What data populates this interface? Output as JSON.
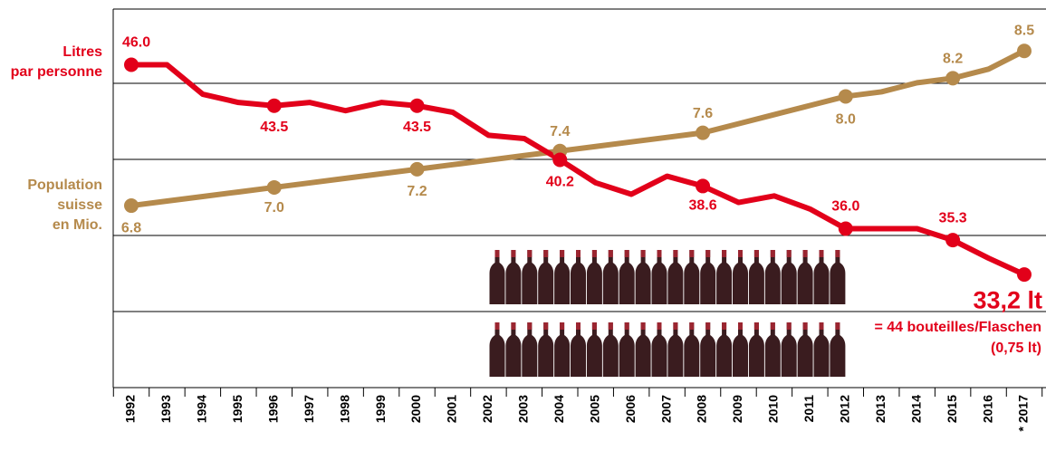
{
  "chart_data": {
    "type": "line",
    "categories": [
      "1992",
      "1993",
      "1994",
      "1995",
      "1996",
      "1997",
      "1998",
      "1999",
      "2000",
      "2001",
      "2002",
      "2003",
      "2004",
      "2005",
      "2006",
      "2007",
      "2008",
      "2009",
      "2010",
      "2011",
      "2012",
      "2013",
      "2014",
      "2015",
      "2016",
      "* 2017"
    ],
    "series": [
      {
        "name": "Litres par personne",
        "color": "#e2001a",
        "values": [
          46.0,
          46.0,
          44.2,
          43.7,
          43.5,
          43.7,
          43.2,
          43.7,
          43.5,
          43.1,
          41.7,
          41.5,
          40.2,
          38.8,
          38.1,
          39.2,
          38.6,
          37.6,
          38.0,
          37.2,
          36.0,
          36.0,
          36.0,
          35.3,
          34.2,
          33.2
        ],
        "value_labels": [
          "46.0",
          null,
          null,
          null,
          "43.5",
          null,
          null,
          null,
          "43.5",
          null,
          null,
          null,
          "40.2",
          null,
          null,
          null,
          "38.6",
          null,
          null,
          null,
          "36.0",
          null,
          null,
          "35.3",
          null,
          "33,2 lt"
        ]
      },
      {
        "name": "Population suisse en Mio.",
        "color": "#b58a4c",
        "axis": "y2",
        "values": [
          6.8,
          6.85,
          6.9,
          6.95,
          7.0,
          7.05,
          7.1,
          7.15,
          7.2,
          7.25,
          7.3,
          7.35,
          7.4,
          7.45,
          7.5,
          7.55,
          7.6,
          7.7,
          7.8,
          7.9,
          8.0,
          8.05,
          8.15,
          8.2,
          8.3,
          8.5
        ],
        "value_labels": [
          "6.8",
          null,
          null,
          null,
          "7.0",
          null,
          null,
          null,
          "7.2",
          null,
          null,
          null,
          "7.4",
          null,
          null,
          null,
          "7.6",
          null,
          null,
          null,
          "8.0",
          null,
          null,
          "8.2",
          null,
          "8.5"
        ]
      }
    ],
    "ylim": [
      26.3,
      49.4
    ],
    "y2lim": [
      4.8,
      8.96
    ],
    "annotations": [
      "= 44 bouteilles/Flaschen",
      "(0,75 lt)"
    ]
  }
}
